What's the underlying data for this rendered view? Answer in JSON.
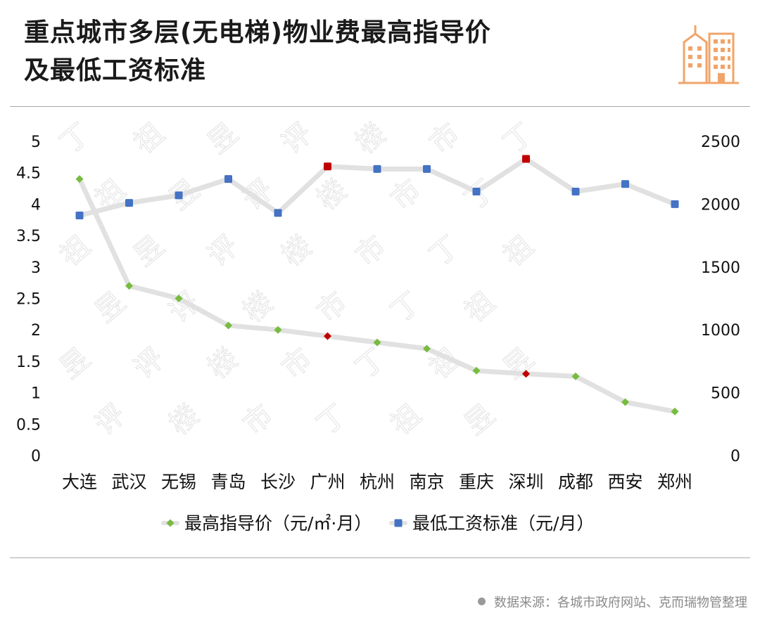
{
  "title": {
    "line1": "重点城市多层(无电梯)物业费最高指导价",
    "line2": "及最低工资标准"
  },
  "logo_icon": "city-buildings-icon",
  "colors": {
    "series1": "#77bc3f",
    "series2": "#4472c4",
    "highlight": "#c00000",
    "line": "#e1e1e1",
    "logo": "#f0a46a",
    "watermark": "#e4e4e4"
  },
  "watermark_text": [
    "丁",
    "祖",
    "昱",
    "评",
    "楼",
    "市"
  ],
  "chart_data": {
    "type": "line",
    "categories": [
      "大连",
      "武汉",
      "无锡",
      "青岛",
      "长沙",
      "广州",
      "杭州",
      "南京",
      "重庆",
      "深圳",
      "成都",
      "西安",
      "郑州"
    ],
    "series": [
      {
        "name": "最高指导价（元/㎡·月）",
        "axis": "left",
        "marker": "diamond",
        "values": [
          4.4,
          2.7,
          2.5,
          2.07,
          2.0,
          1.9,
          1.8,
          1.7,
          1.35,
          1.3,
          1.26,
          0.85,
          0.7
        ],
        "highlight_indices": [
          5,
          9
        ]
      },
      {
        "name": "最低工资标准（元/月）",
        "axis": "right",
        "marker": "square",
        "values": [
          1910,
          2010,
          2070,
          2200,
          1930,
          2300,
          2280,
          2280,
          2100,
          2360,
          2100,
          2160,
          2000
        ],
        "highlight_indices": [
          5,
          9
        ]
      }
    ],
    "y_left": {
      "range": [
        0,
        5
      ],
      "ticks": [
        "0",
        "0.5",
        "1",
        "1.5",
        "2",
        "2.5",
        "3",
        "3.5",
        "4",
        "4.5",
        "5"
      ]
    },
    "y_right": {
      "range": [
        0,
        2500
      ],
      "ticks": [
        "0",
        "500",
        "1000",
        "1500",
        "2000",
        "2500"
      ]
    },
    "grid": false,
    "legend_position": "bottom"
  },
  "source": {
    "text": "数据来源：各城市政府网站、克而瑞物管整理"
  }
}
